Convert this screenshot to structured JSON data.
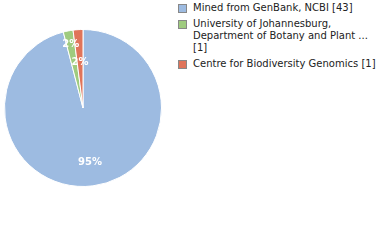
{
  "chart_data": {
    "type": "pie",
    "categories": [
      "Mined from GenBank, NCBI [43]",
      "University of Johannesburg, Department of Botany and Plant ... [1]",
      "Centre for Biodiversity Genomics [1]"
    ],
    "values": [
      95,
      2,
      2
    ],
    "value_labels": [
      "95%",
      "2%",
      "2%"
    ],
    "colors": [
      "#9dbbe1",
      "#9fcb7f",
      "#e0745a"
    ],
    "data_labels": true,
    "legend": "right"
  }
}
